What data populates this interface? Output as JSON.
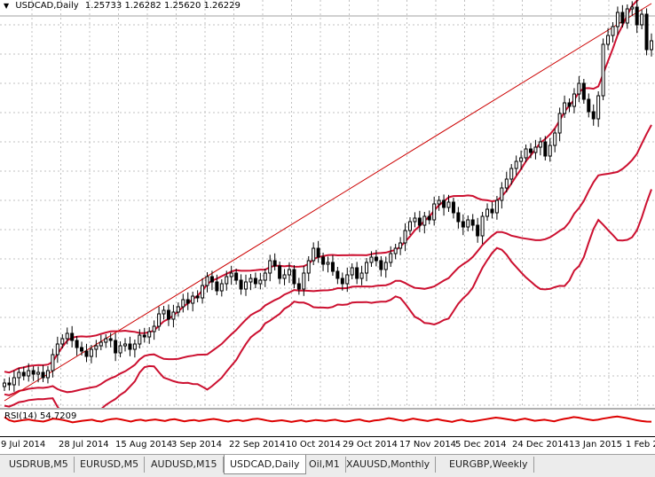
{
  "header": {
    "symbol": "USDCAD,Daily",
    "ohlc": "1.25733 1.26282 1.25620 1.26229"
  },
  "rsi": {
    "label": "RSI(14) 54.7209"
  },
  "time_axis": [
    "9 Jul 2014",
    "28 Jul 2014",
    "15 Aug 2014",
    "3 Sep 2014",
    "22 Sep 2014",
    "10 Oct 2014",
    "29 Oct 2014",
    "17 Nov 2014",
    "5 Dec 2014",
    "24 Dec 2014",
    "13 Jan 2015",
    "1 Feb 2"
  ],
  "tabs": [
    {
      "label": "USDRUB,M5",
      "active": false
    },
    {
      "label": "EURUSD,M5",
      "active": false
    },
    {
      "label": "AUDUSD,M15",
      "active": false
    },
    {
      "label": "USDCAD,Daily",
      "active": true
    },
    {
      "label": "Oil,M1",
      "active": false
    },
    {
      "label": "XAUUSD,Monthly",
      "active": false
    },
    {
      "label": "EURGBP,Weekly",
      "active": false
    }
  ],
  "colors": {
    "grid": "#c0c0c0",
    "bands": "#cc1030",
    "trendline": "#cc0000",
    "candles": "#000000",
    "rsi_line": "#dd0000",
    "hline": "#a0a0a0"
  },
  "chart_data": {
    "type": "candlestick",
    "symbol": "USDCAD",
    "timeframe": "Daily",
    "x_start": "2014-07-07",
    "x_end": "2015-02-04",
    "ylim": [
      1.055,
      1.285
    ],
    "closes": [
      1.069,
      1.068,
      1.072,
      1.075,
      1.073,
      1.076,
      1.074,
      1.075,
      1.072,
      1.076,
      1.085,
      1.091,
      1.094,
      1.097,
      1.093,
      1.089,
      1.087,
      1.084,
      1.088,
      1.09,
      1.092,
      1.094,
      1.093,
      1.086,
      1.09,
      1.091,
      1.088,
      1.091,
      1.096,
      1.095,
      1.098,
      1.101,
      1.108,
      1.11,
      1.105,
      1.109,
      1.112,
      1.116,
      1.114,
      1.118,
      1.117,
      1.124,
      1.129,
      1.126,
      1.121,
      1.125,
      1.129,
      1.131,
      1.127,
      1.122,
      1.126,
      1.128,
      1.125,
      1.127,
      1.131,
      1.138,
      1.135,
      1.128,
      1.13,
      1.133,
      1.125,
      1.122,
      1.131,
      1.138,
      1.145,
      1.14,
      1.136,
      1.137,
      1.132,
      1.128,
      1.125,
      1.13,
      1.134,
      1.128,
      1.131,
      1.137,
      1.14,
      1.138,
      1.133,
      1.137,
      1.142,
      1.145,
      1.148,
      1.155,
      1.16,
      1.162,
      1.158,
      1.163,
      1.161,
      1.17,
      1.172,
      1.168,
      1.171,
      1.165,
      1.16,
      1.157,
      1.161,
      1.158,
      1.152,
      1.163,
      1.167,
      1.165,
      1.172,
      1.179,
      1.184,
      1.19,
      1.194,
      1.196,
      1.201,
      1.199,
      1.202,
      1.205,
      1.197,
      1.203,
      1.21,
      1.221,
      1.227,
      1.225,
      1.232,
      1.238,
      1.229,
      1.222,
      1.218,
      1.231,
      1.26,
      1.265,
      1.27,
      1.278,
      1.272,
      1.28,
      1.281,
      1.271,
      1.277,
      1.257,
      1.262
    ],
    "hline": 1.276,
    "trendline": {
      "from": [
        "2014-07-07",
        1.059
      ],
      "to": [
        "2015-02-04",
        1.283
      ]
    },
    "indicators": [
      "Bollinger Bands",
      "Bollinger Bands (outer)",
      "RSI(14)"
    ],
    "rsi_value": 54.7209,
    "rsi_ylim": [
      0,
      100
    ],
    "rsi_levels": [
      72,
      60,
      55,
      58,
      61,
      63,
      59,
      57,
      55,
      60,
      66,
      64,
      61,
      57,
      52,
      55,
      58,
      60,
      62,
      57,
      55,
      61,
      64,
      66,
      63,
      59,
      55,
      60,
      62,
      58,
      61,
      63,
      60,
      57,
      62,
      64,
      60,
      56,
      59,
      61,
      57,
      60,
      63,
      65,
      62,
      58,
      55,
      59,
      61,
      57,
      60,
      64,
      66,
      63,
      59,
      56,
      58,
      60,
      57,
      54,
      57,
      60,
      55,
      58,
      61,
      59,
      57,
      60,
      62,
      58,
      55,
      57,
      61,
      63,
      58,
      55,
      59,
      61,
      64,
      68,
      65,
      61,
      58,
      62,
      66,
      63,
      60,
      57,
      61,
      64,
      60,
      57,
      54,
      59,
      62,
      57,
      55,
      58,
      61,
      64,
      67,
      70,
      68,
      65,
      62,
      59,
      63,
      66,
      62,
      58,
      60,
      62,
      59,
      56,
      61,
      65,
      68,
      72,
      70,
      66,
      63,
      60,
      62,
      66,
      69,
      72,
      74,
      71,
      68,
      64,
      60,
      57,
      55,
      54.7
    ]
  }
}
